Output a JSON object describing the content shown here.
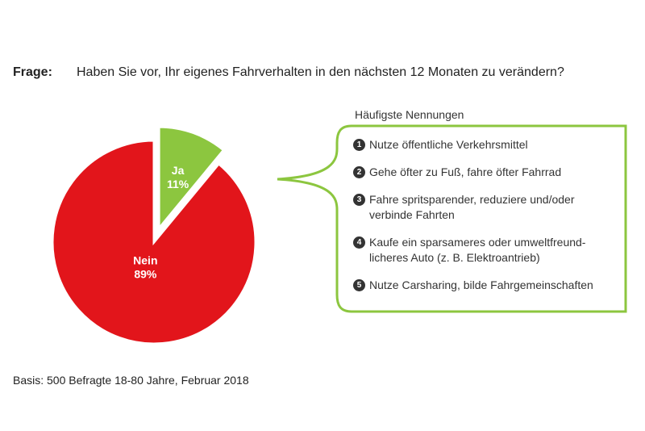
{
  "question": {
    "label": "Frage:",
    "text": "Haben Sie vor, Ihr eigenes Fahrverhalten in den nächsten 12 Monaten zu verändern?"
  },
  "callout": {
    "heading": "Häufigste Nennungen",
    "items": [
      {
        "number": "1",
        "lines": [
          "Nutze öffentliche Verkehrsmittel"
        ]
      },
      {
        "number": "2",
        "lines": [
          "Gehe öfter zu Fuß, fahre öfter Fahrrad"
        ]
      },
      {
        "number": "3",
        "lines": [
          "Fahre spritsparender, reduziere und/oder",
          "verbinde Fahrten"
        ]
      },
      {
        "number": "4",
        "lines": [
          "Kaufe ein sparsameres oder umweltfreund-",
          "licheres Auto (z. B. Elektroantrieb)"
        ]
      },
      {
        "number": "5",
        "lines": [
          "Nutze Carsharing, bilde Fahrgemeinschaften"
        ]
      }
    ],
    "border_color": "#8cc63f"
  },
  "chart_data": {
    "type": "pie",
    "title": "",
    "slices": [
      {
        "label": "Ja",
        "value": 11,
        "value_label": "11%",
        "color": "#8cc63f",
        "exploded": true
      },
      {
        "label": "Nein",
        "value": 89,
        "value_label": "89%",
        "color": "#e2151b",
        "exploded": false
      }
    ]
  },
  "basis": "Basis: 500 Befragte 18-80 Jahre, Februar 2018"
}
